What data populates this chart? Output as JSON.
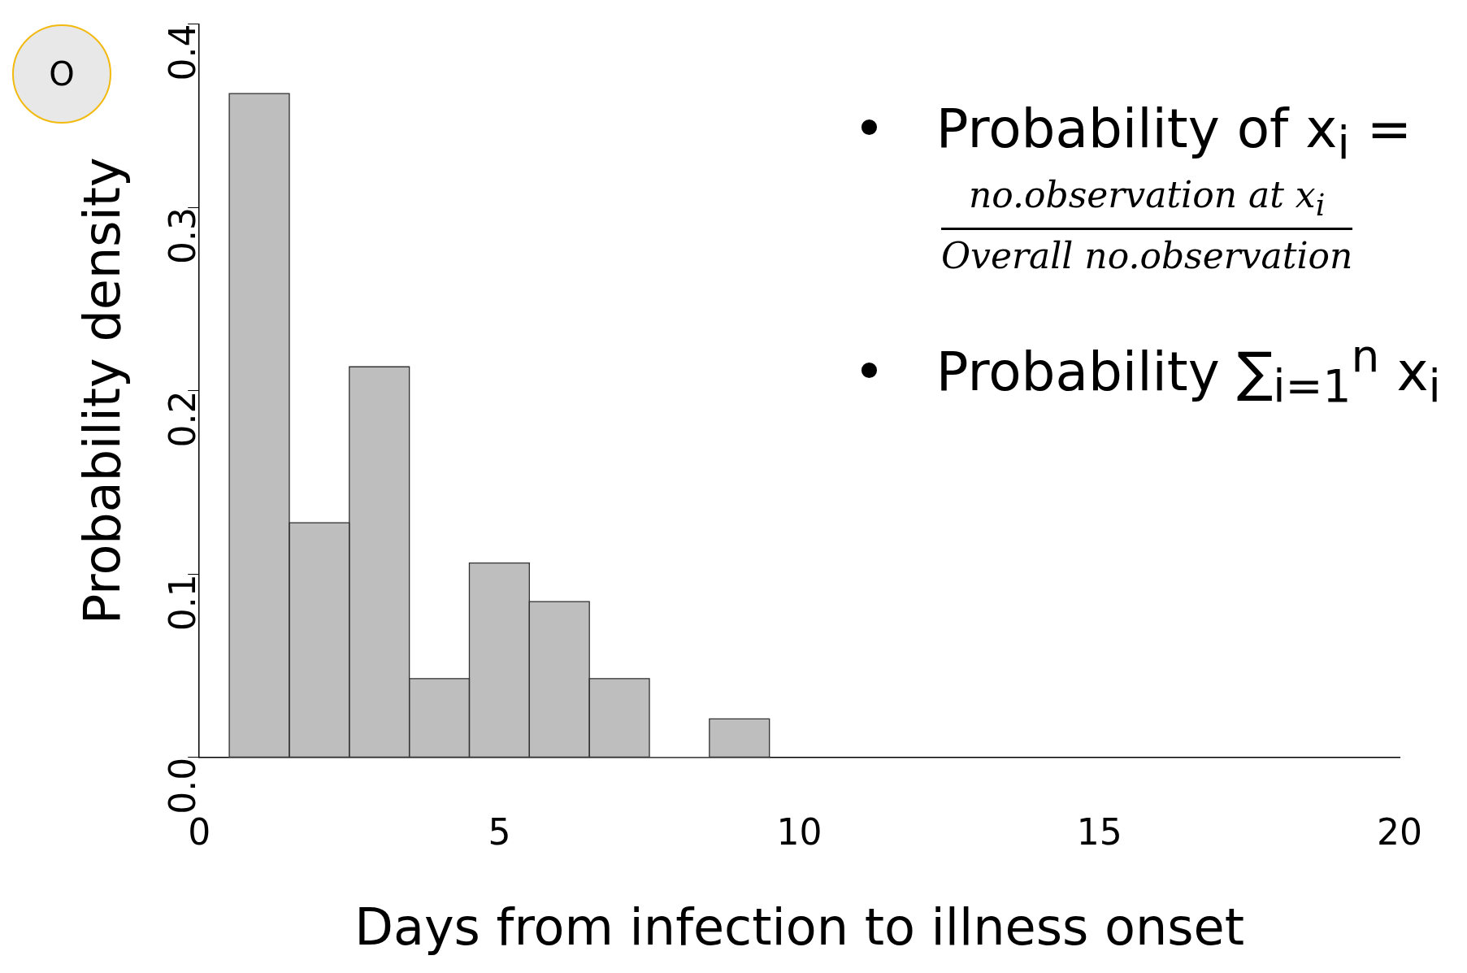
{
  "chart_data": {
    "type": "histogram",
    "xlabel": "Days from infection to illness onset",
    "ylabel": "Probability density",
    "bins": [
      0.5,
      1.5,
      2.5,
      3.5,
      4.5,
      5.5,
      6.5,
      7.5,
      8.5,
      9.5
    ],
    "values": [
      0.362,
      0.128,
      0.213,
      0.043,
      0.106,
      0.085,
      0.043,
      0,
      0.021
    ],
    "color": "#bebebe",
    "xlim": [
      0,
      20
    ],
    "xticks": [
      0,
      5,
      10,
      15,
      20
    ],
    "ylim": [
      0,
      0.4
    ],
    "yticks": [
      {
        "value": 0,
        "label": "0.0"
      },
      {
        "value": 0.1,
        "label": "0.1"
      },
      {
        "value": 0.2,
        "label": "0.2"
      },
      {
        "value": 0.3,
        "label": "0.3"
      },
      {
        "value": 0.4,
        "label": "0.4"
      }
    ],
    "grid": false,
    "legend": false,
    "annotations": [
      "O",
      "•   Probability of x$_{i}$ =",
      "no.observation at x$_{i}$",
      "Overall no.observation",
      "•   Probability ∑$_{i=1}$$^{n}$ x$_{i}$"
    ]
  }
}
